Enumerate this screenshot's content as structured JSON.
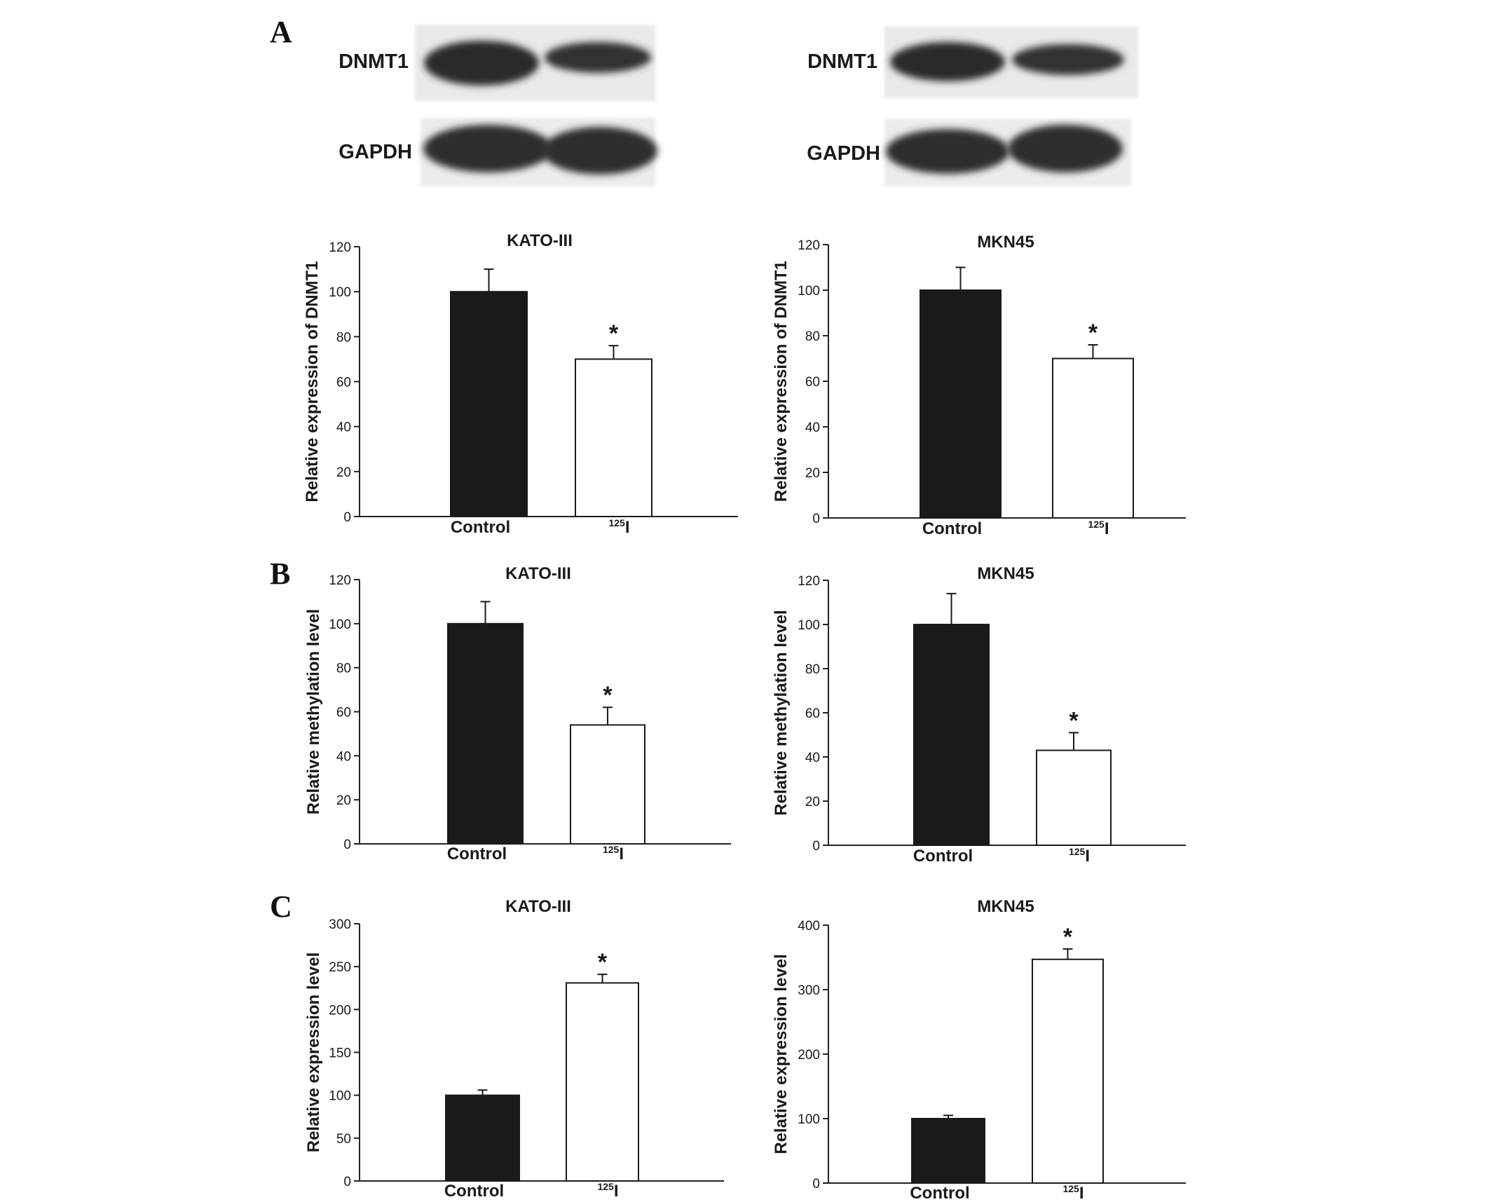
{
  "panels": [
    {
      "letter": "A",
      "labelPos": "top-left"
    },
    {
      "letter": "B",
      "labelPos": "left"
    },
    {
      "letter": "C",
      "labelPos": "left"
    }
  ],
  "blots": [
    {
      "cell": "KATO-III",
      "rows": [
        {
          "label": "DNMT1",
          "intensity": [
            1.0,
            0.72
          ]
        },
        {
          "label": "GAPDH",
          "intensity": [
            1.0,
            1.0
          ]
        }
      ]
    },
    {
      "cell": "MKN45",
      "rows": [
        {
          "label": "DNMT1",
          "intensity": [
            1.0,
            0.72
          ]
        },
        {
          "label": "GAPDH",
          "intensity": [
            1.0,
            1.0
          ]
        }
      ]
    }
  ],
  "chart_data": [
    {
      "type": "bar",
      "panel": "A",
      "title": "KATO-III",
      "ylabel": "Relative expression of DNMT1",
      "categories": [
        "Control",
        "125I"
      ],
      "category_display": [
        {
          "main": "Control",
          "sup": ""
        },
        {
          "main": "I",
          "sup": "125"
        }
      ],
      "values": [
        100,
        70
      ],
      "errors": [
        10,
        6
      ],
      "significance": [
        "",
        "*"
      ],
      "ylim": [
        0,
        120
      ],
      "yticks": [
        "0",
        "20",
        "40",
        "60",
        "80",
        "100",
        "120"
      ],
      "bar_colors": [
        "#1a1a1a",
        "#ffffff"
      ],
      "grid": false
    },
    {
      "type": "bar",
      "panel": "A",
      "title": "MKN45",
      "ylabel": "Relative expression of DNMT1",
      "categories": [
        "Control",
        "125I"
      ],
      "category_display": [
        {
          "main": "Control",
          "sup": ""
        },
        {
          "main": "I",
          "sup": "125"
        }
      ],
      "values": [
        100,
        70
      ],
      "errors": [
        10,
        6
      ],
      "significance": [
        "",
        "*"
      ],
      "ylim": [
        0,
        120
      ],
      "yticks": [
        "0",
        "20",
        "40",
        "60",
        "80",
        "100",
        "120"
      ],
      "bar_colors": [
        "#1a1a1a",
        "#ffffff"
      ],
      "grid": false
    },
    {
      "type": "bar",
      "panel": "B",
      "title": "KATO-III",
      "ylabel": "Relative methylation level",
      "categories": [
        "Control",
        "125I"
      ],
      "category_display": [
        {
          "main": "Control",
          "sup": ""
        },
        {
          "main": "I",
          "sup": "125"
        }
      ],
      "values": [
        100,
        54
      ],
      "errors": [
        10,
        8
      ],
      "significance": [
        "",
        "*"
      ],
      "ylim": [
        0,
        120
      ],
      "yticks": [
        "0",
        "20",
        "40",
        "60",
        "80",
        "100",
        "120"
      ],
      "bar_colors": [
        "#1a1a1a",
        "#ffffff"
      ],
      "grid": false
    },
    {
      "type": "bar",
      "panel": "B",
      "title": "MKN45",
      "ylabel": "Relative methylation level",
      "categories": [
        "Control",
        "125I"
      ],
      "category_display": [
        {
          "main": "Control",
          "sup": ""
        },
        {
          "main": "I",
          "sup": "125"
        }
      ],
      "values": [
        100,
        43
      ],
      "errors": [
        14,
        8
      ],
      "significance": [
        "",
        "*"
      ],
      "ylim": [
        0,
        120
      ],
      "yticks": [
        "0",
        "20",
        "40",
        "60",
        "80",
        "100",
        "120"
      ],
      "bar_colors": [
        "#1a1a1a",
        "#ffffff"
      ],
      "grid": false
    },
    {
      "type": "bar",
      "panel": "C",
      "title": "KATO-III",
      "ylabel": "Relative expression level",
      "categories": [
        "Control",
        "125I"
      ],
      "category_display": [
        {
          "main": "Control",
          "sup": ""
        },
        {
          "main": "I",
          "sup": "125"
        }
      ],
      "values": [
        100,
        231
      ],
      "errors": [
        6,
        10
      ],
      "significance": [
        "",
        "*"
      ],
      "ylim": [
        0,
        300
      ],
      "yticks": [
        "0",
        "50",
        "100",
        "150",
        "200",
        "250",
        "300"
      ],
      "bar_colors": [
        "#1a1a1a",
        "#ffffff"
      ],
      "grid": false
    },
    {
      "type": "bar",
      "panel": "C",
      "title": "MKN45",
      "ylabel": "Relative expression level",
      "categories": [
        "Control",
        "125I"
      ],
      "category_display": [
        {
          "main": "Control",
          "sup": ""
        },
        {
          "main": "I",
          "sup": "125"
        }
      ],
      "values": [
        100,
        347
      ],
      "errors": [
        5,
        16
      ],
      "significance": [
        "",
        "*"
      ],
      "ylim": [
        0,
        400
      ],
      "yticks": [
        "0",
        "100",
        "200",
        "300",
        "400"
      ],
      "bar_colors": [
        "#1a1a1a",
        "#ffffff"
      ],
      "grid": false
    }
  ]
}
